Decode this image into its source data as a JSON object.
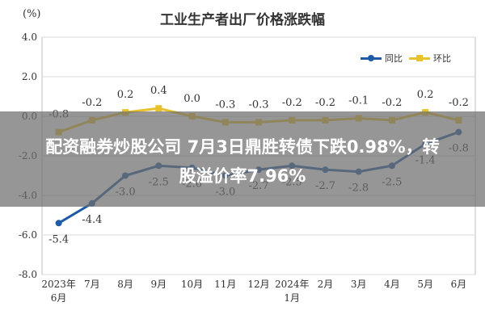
{
  "chart_data": {
    "type": "line",
    "title": "工业生产者出厂价格涨跌幅",
    "unit_label": "(%)",
    "categories": [
      "2023年\n6月",
      "7月",
      "8月",
      "9月",
      "10月",
      "11月",
      "12月",
      "2024年\n1月",
      "2月",
      "3月",
      "4月",
      "5月",
      "6月"
    ],
    "series": [
      {
        "name": "同比",
        "color": "#1f5aa6",
        "values": [
          -5.4,
          -4.4,
          -3.0,
          -2.5,
          -2.6,
          -3.0,
          -2.7,
          -2.5,
          -2.7,
          -2.8,
          -2.5,
          -1.4,
          -0.8
        ],
        "labels": [
          "-5.4",
          "-4.4",
          "-3.0",
          "-2.5",
          "-2.6",
          "-3.0",
          "-2.7",
          "-2.5",
          "-2.7",
          "-2.8",
          "-2.5",
          "-1.4",
          "-0.8"
        ]
      },
      {
        "name": "环比",
        "color": "#e8c22c",
        "values": [
          -0.8,
          -0.2,
          0.2,
          0.4,
          0.0,
          -0.3,
          -0.3,
          -0.2,
          -0.2,
          -0.1,
          -0.2,
          0.2,
          -0.2
        ],
        "labels": [
          "-0.8",
          "-0.2",
          "0.2",
          "0.4",
          "0.0",
          "-0.3",
          "-0.3",
          "-0.2",
          "-0.2",
          "-0.1",
          "-0.2",
          "0.2",
          "-0.2"
        ]
      }
    ],
    "ylim": [
      -8.0,
      4.0
    ],
    "yticks": [
      4.0,
      2.0,
      0.0,
      -2.0,
      -4.0,
      -6.0,
      -8.0
    ],
    "ytick_labels": [
      "4.0",
      "2.0",
      "0.0",
      "-2.0",
      "-4.0",
      "-6.0",
      "-8.0"
    ],
    "grid": true,
    "legend_position": "top-right"
  },
  "overlay": {
    "line1": "配资融券炒股公司 7月3日鼎胜转债下跌0.98%，转",
    "line2": "股溢价率7.96%",
    "background": "#6e6e6e"
  },
  "colors": {
    "grid": "#d8d8d8",
    "axis_text": "#333333",
    "frame": "#bfbfbf"
  }
}
